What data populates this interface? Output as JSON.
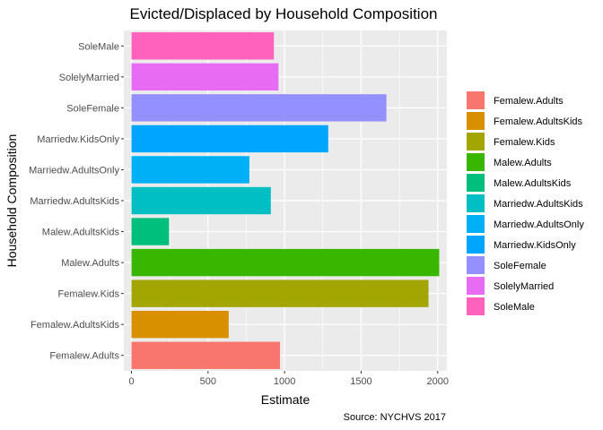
{
  "chart_data": {
    "type": "bar",
    "orientation": "horizontal",
    "title": "Evicted/Displaced by Household Composition",
    "xlabel": "Estimate",
    "ylabel": "Household Composition",
    "caption": "Source: NYCHVS 2017",
    "xlim": [
      -50,
      2060
    ],
    "xticks": [
      0,
      500,
      1000,
      1500,
      2000
    ],
    "grid": true,
    "legend_position": "right",
    "categories": [
      "Femalew.Adults",
      "Femalew.AdultsKids",
      "Femalew.Kids",
      "Malew.Adults",
      "Malew.AdultsKids",
      "Marriedw.AdultsKids",
      "Marriedw.AdultsOnly",
      "Marriedw.KidsOnly",
      "SoleFemale",
      "SolelyMarried",
      "SoleMale"
    ],
    "values": [
      970,
      635,
      1940,
      2010,
      245,
      910,
      770,
      1285,
      1665,
      960,
      930
    ],
    "colors": [
      "#F8766D",
      "#D89000",
      "#A3A500",
      "#39B600",
      "#00BF7D",
      "#00BFC4",
      "#00B0F6",
      "#00A5FF",
      "#9590FF",
      "#E76BF3",
      "#FF62BC"
    ],
    "legend": [
      "Femalew.Adults",
      "Femalew.AdultsKids",
      "Femalew.Kids",
      "Malew.Adults",
      "Malew.AdultsKids",
      "Marriedw.AdultsKids",
      "Marriedw.AdultsOnly",
      "Marriedw.KidsOnly",
      "SoleFemale",
      "SolelyMarried",
      "SoleMale"
    ]
  }
}
